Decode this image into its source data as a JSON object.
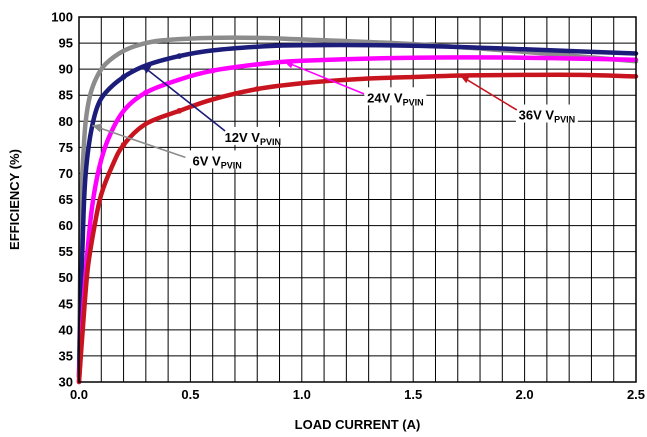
{
  "chart_data": {
    "type": "line",
    "xlabel": "LOAD CURRENT (A)",
    "ylabel": "EFFICIENCY (%)",
    "xlim": [
      0,
      2.5
    ],
    "ylim": [
      30,
      100
    ],
    "x_ticks": [
      "0.0",
      "0.5",
      "1.0",
      "1.5",
      "2.0",
      "2.5"
    ],
    "y_ticks": [
      "30",
      "35",
      "40",
      "45",
      "50",
      "55",
      "60",
      "65",
      "70",
      "75",
      "80",
      "85",
      "90",
      "95",
      "100"
    ],
    "grid": true,
    "series": [
      {
        "name": "6V VPVIN",
        "label_main": "6V V",
        "label_sub": "PVIN",
        "color": "#8c8c8c",
        "x": [
          0.0,
          0.005,
          0.01,
          0.02,
          0.03,
          0.05,
          0.08,
          0.12,
          0.2,
          0.3,
          0.4,
          0.6,
          0.8,
          1.0,
          1.5,
          2.0,
          2.5
        ],
        "y": [
          31,
          50,
          65,
          74,
          80,
          85,
          88.5,
          91,
          93.5,
          95,
          95.6,
          96,
          96,
          95.7,
          94.8,
          93.3,
          91.5
        ]
      },
      {
        "name": "12V VPVIN",
        "label_main": "12V V",
        "label_sub": "PVIN",
        "color": "#1c1c7a",
        "x": [
          0.0,
          0.01,
          0.02,
          0.03,
          0.05,
          0.08,
          0.12,
          0.2,
          0.3,
          0.45,
          0.6,
          0.8,
          1.0,
          1.5,
          2.0,
          2.5
        ],
        "y": [
          31,
          48,
          62,
          70,
          77,
          82.5,
          85.5,
          88.5,
          90.7,
          92.5,
          93.6,
          94.3,
          94.6,
          94.5,
          93.8,
          93
        ],
        "markers": [
          {
            "x": 0.2,
            "y": 88.5
          },
          {
            "x": 0.45,
            "y": 92.5
          }
        ]
      },
      {
        "name": "24V VPVIN",
        "label_main": "24V V",
        "label_sub": "PVIN",
        "color": "#ff00ff",
        "x": [
          0.0,
          0.02,
          0.04,
          0.06,
          0.09,
          0.13,
          0.2,
          0.3,
          0.45,
          0.6,
          0.8,
          1.0,
          1.5,
          2.0,
          2.5
        ],
        "y": [
          30,
          45,
          56,
          64,
          71,
          76.5,
          82,
          85.5,
          88,
          89.7,
          90.9,
          91.6,
          92.2,
          92.2,
          91.8
        ],
        "markers": [
          {
            "x": 0.3,
            "y": 85.5
          },
          {
            "x": 0.6,
            "y": 89.7
          }
        ]
      },
      {
        "name": "36V VPVIN",
        "label_main": "36V V",
        "label_sub": "PVIN",
        "color": "#c8141e",
        "x": [
          0.0,
          0.02,
          0.04,
          0.07,
          0.1,
          0.15,
          0.2,
          0.3,
          0.45,
          0.6,
          0.8,
          1.0,
          1.25,
          1.5,
          1.75,
          2.0,
          2.25,
          2.5
        ],
        "y": [
          30,
          42,
          52,
          60,
          66,
          71.5,
          75.5,
          79.5,
          82,
          84.2,
          86.2,
          87.3,
          88.1,
          88.5,
          88.8,
          88.9,
          88.9,
          88.6
        ],
        "markers": [
          {
            "x": 0.2,
            "y": 75.5
          },
          {
            "x": 0.45,
            "y": 82
          },
          {
            "x": 0.8,
            "y": 86.2
          }
        ]
      }
    ],
    "annotations": [
      {
        "series": "12V VPVIN",
        "text_x": 0.78,
        "text_y": 77,
        "arrow_to_x": 0.28,
        "arrow_to_y": 90.8
      },
      {
        "series": "24V VPVIN",
        "text_x": 1.42,
        "text_y": 84.6,
        "arrow_to_x": 0.92,
        "arrow_to_y": 91.5
      },
      {
        "series": "36V VPVIN",
        "text_x": 2.1,
        "text_y": 81.3,
        "arrow_to_x": 1.71,
        "arrow_to_y": 88.8
      },
      {
        "series": "6V VPVIN",
        "text_x": 0.62,
        "text_y": 72.5,
        "arrow_to_x": 0.06,
        "arrow_to_y": 79.2
      }
    ]
  }
}
